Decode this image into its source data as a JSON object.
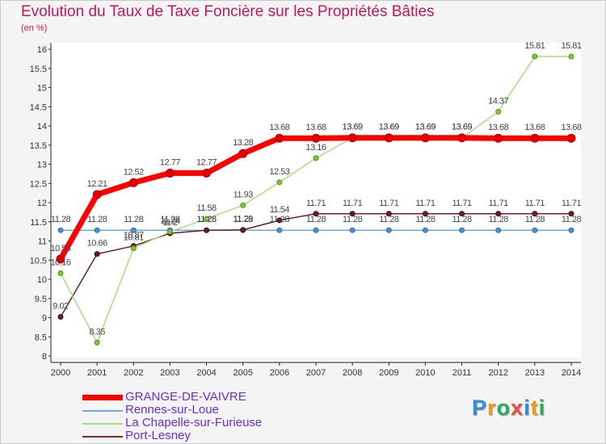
{
  "chart_data": {
    "type": "line",
    "title": "Evolution du Taux de Taxe Foncière sur les Propriétés Bâties",
    "ylabel": "(en %)",
    "xlabel": "",
    "x": [
      2000,
      2001,
      2002,
      2003,
      2004,
      2005,
      2006,
      2007,
      2008,
      2009,
      2010,
      2011,
      2012,
      2013,
      2014
    ],
    "ylim": [
      8,
      16
    ],
    "yticks": [
      8,
      8.5,
      9,
      9.5,
      10,
      10.5,
      11,
      11.5,
      12,
      12.5,
      13,
      13.5,
      14,
      14.5,
      15,
      15.5,
      16
    ],
    "series": [
      {
        "name": "GRANGE-DE-VAIVRE",
        "color": "#ff0000",
        "values": [
          10.53,
          12.21,
          12.52,
          12.77,
          12.77,
          13.28,
          13.68,
          13.68,
          13.69,
          13.69,
          13.69,
          13.69,
          13.68,
          13.68,
          13.68
        ],
        "labels": [
          "10.53",
          "12.21",
          "12.52",
          "12.77",
          "12.77",
          "13.28",
          "13.68",
          "13.68",
          "13.69",
          "13.69",
          "13.69",
          "13.69",
          "13.68",
          "13.68",
          "13.68"
        ]
      },
      {
        "name": "Rennes-sur-Loue",
        "color": "#6fa8dc",
        "values": [
          11.28,
          11.28,
          11.28,
          11.28,
          11.28,
          11.28,
          11.28,
          11.28,
          11.28,
          11.28,
          11.28,
          11.28,
          11.28,
          11.28,
          11.28
        ],
        "labels": [
          "11.28",
          "11.28",
          "11.28",
          "11.28",
          "11.28",
          "11.28",
          "11.28",
          "11.28",
          "11.28",
          "11.28",
          "11.28",
          "11.28",
          "11.28",
          "11.28",
          "11.28"
        ]
      },
      {
        "name": "La Chapelle-sur-Furieuse",
        "color": "#a6e07c",
        "values": [
          10.16,
          8.35,
          10.81,
          11.24,
          11.58,
          11.93,
          12.53,
          13.16,
          13.69,
          13.69,
          13.69,
          13.69,
          14.37,
          15.81,
          15.81
        ],
        "labels": [
          "10.16",
          "8.35",
          "10.81",
          "11.24",
          "11.58",
          "11.93",
          "12.53",
          "13.16",
          "13.69",
          "13.69",
          "13.69",
          "13.69",
          "14.37",
          "15.81",
          "15.81"
        ]
      },
      {
        "name": "Port-Lesney",
        "color": "#6b1f1f",
        "values": [
          9.02,
          10.66,
          10.87,
          11.2,
          11.28,
          11.29,
          11.54,
          11.71,
          11.71,
          11.71,
          11.71,
          11.71,
          11.71,
          11.71,
          11.71
        ],
        "labels": [
          "9.02",
          "10.66",
          "10.87",
          "11.2",
          "11.28",
          "11.29",
          "11.54",
          "11.71",
          "11.71",
          "11.71",
          "11.71",
          "11.71",
          "11.71",
          "11.71",
          "11.71"
        ]
      }
    ],
    "legend": "bottom-left",
    "grid": false
  }
}
